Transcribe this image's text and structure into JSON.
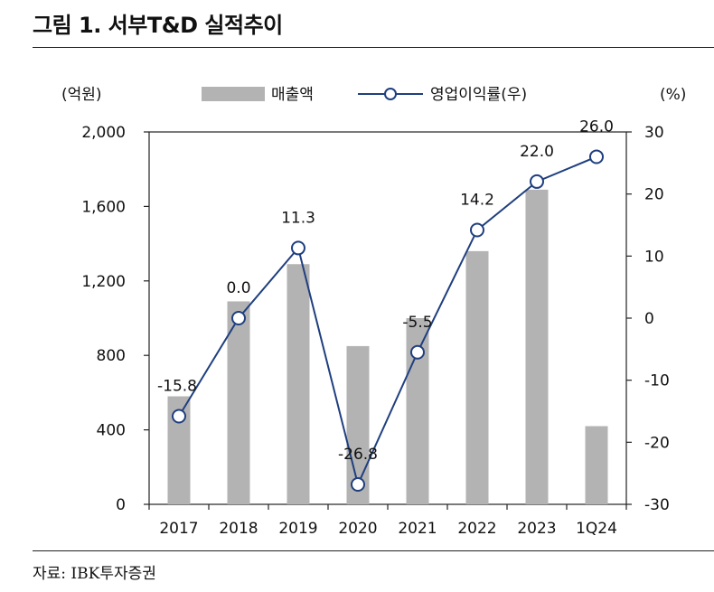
{
  "title": "그림 1. 서부T&D 실적추이",
  "source": "자료: IBK투자증권",
  "chart_data": {
    "type": "bar+line",
    "title": "그림 1. 서부T&D 실적추이",
    "categories": [
      "2017",
      "2018",
      "2019",
      "2020",
      "2021",
      "2022",
      "2023",
      "1Q24"
    ],
    "series": [
      {
        "name": "매출액",
        "type": "bar",
        "axis": "left",
        "color": "#b3b3b3",
        "values": [
          580,
          1090,
          1290,
          850,
          1000,
          1360,
          1690,
          420
        ]
      },
      {
        "name": "영업이익률(우)",
        "type": "line",
        "axis": "right",
        "color": "#1f3f7f",
        "values": [
          -15.8,
          0.0,
          11.3,
          -26.8,
          -5.5,
          14.2,
          22.0,
          26.0
        ],
        "labels": [
          "-15.8",
          "0.0",
          "11.3",
          "-26.8",
          "-5.5",
          "14.2",
          "22.0",
          "26.0"
        ]
      }
    ],
    "left_axis": {
      "unit": "(억원)",
      "range": [
        0,
        2000
      ],
      "ticks": [
        0,
        400,
        800,
        1200,
        1600,
        2000
      ],
      "tick_labels": [
        "0",
        "400",
        "800",
        "1,200",
        "1,600",
        "2,000"
      ]
    },
    "right_axis": {
      "unit": "(%)",
      "range": [
        -30,
        30
      ],
      "ticks": [
        -30,
        -20,
        -10,
        0,
        10,
        20,
        30
      ],
      "tick_labels": [
        "-30",
        "-20",
        "-10",
        "0",
        "10",
        "20",
        "30"
      ]
    },
    "legend": {
      "placement": "top-center",
      "entries": [
        "매출액",
        "영업이익률(우)"
      ]
    }
  }
}
